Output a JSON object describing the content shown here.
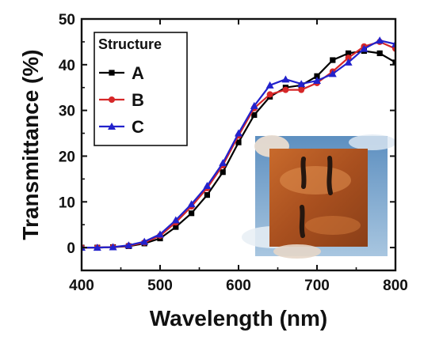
{
  "chart_data": {
    "type": "line",
    "title": "",
    "xlabel": "Wavelength (nm)",
    "ylabel": "Transmittance (%)",
    "xlim": [
      400,
      800
    ],
    "ylim": [
      -5,
      50
    ],
    "xticks": [
      400,
      500,
      600,
      700,
      800
    ],
    "yticks": [
      0,
      10,
      20,
      30,
      40,
      50
    ],
    "grid": false,
    "legend": {
      "title": "Structure",
      "position": "top-left"
    },
    "x": [
      400,
      420,
      440,
      460,
      480,
      500,
      520,
      540,
      560,
      580,
      600,
      620,
      640,
      660,
      680,
      700,
      720,
      740,
      760,
      780,
      800
    ],
    "series": [
      {
        "name": "A",
        "color": "#000000",
        "marker": "square",
        "values": [
          0.0,
          0.0,
          0.1,
          0.3,
          0.9,
          2.0,
          4.5,
          7.5,
          11.5,
          16.5,
          23.0,
          29.0,
          33.0,
          35.0,
          35.5,
          37.5,
          41.0,
          42.5,
          43.0,
          42.5,
          40.5
        ]
      },
      {
        "name": "B",
        "color": "#d62728",
        "marker": "circle",
        "values": [
          0.0,
          0.0,
          0.1,
          0.4,
          1.1,
          2.6,
          5.5,
          9.0,
          13.0,
          18.0,
          24.5,
          30.5,
          33.5,
          34.5,
          34.5,
          36.0,
          38.5,
          41.5,
          44.0,
          45.0,
          43.5
        ]
      },
      {
        "name": "C",
        "color": "#2222cc",
        "marker": "triangle",
        "values": [
          0.0,
          0.0,
          0.1,
          0.5,
          1.3,
          2.9,
          6.0,
          9.5,
          13.5,
          18.5,
          25.0,
          31.0,
          35.5,
          36.8,
          35.8,
          36.5,
          38.0,
          40.5,
          43.5,
          45.3,
          44.5
        ]
      }
    ],
    "inset": {
      "description_icon": "photo-inset",
      "colors": {
        "sky": "#7fa9cf",
        "film": "#b5531f",
        "film_light": "#d07a3a",
        "marks": "#2a1a12"
      }
    }
  }
}
